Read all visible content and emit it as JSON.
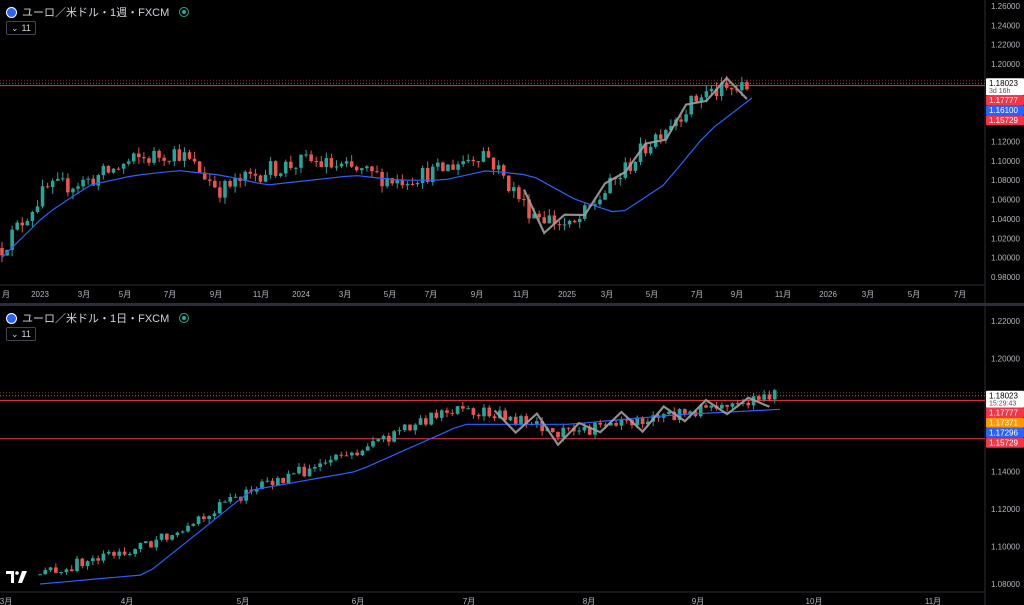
{
  "top": {
    "title": "ユーロ／米ドル・1週・FXCM",
    "ma_label": "11",
    "countdown": "3d 16h",
    "price_labels": [
      "1.18023",
      "1.17777",
      "1.16100",
      "1.15729"
    ],
    "y_ticks": [
      "1.26000",
      "1.24000",
      "1.22000",
      "1.20000",
      "1.18000",
      "1.16000",
      "1.14000",
      "1.12000",
      "1.10000",
      "1.08000",
      "1.06000",
      "1.04000",
      "1.02000",
      "1.00000",
      "0.98000"
    ],
    "x_ticks": [
      "月",
      "2023",
      "3月",
      "5月",
      "7月",
      "9月",
      "11月",
      "2024",
      "3月",
      "5月",
      "7月",
      "9月",
      "11月",
      "2025",
      "3月",
      "5月",
      "7月",
      "9月",
      "11月",
      "2026",
      "3月",
      "5月",
      "7月"
    ]
  },
  "bottom": {
    "title": "ユーロ／米ドル・1日・FXCM",
    "ma_label": "11",
    "countdown": "15:29:43",
    "price_labels": [
      "1.18023",
      "1.17777",
      "1.17371",
      "1.17296",
      "1.15729"
    ],
    "y_ticks": [
      "1.22000",
      "1.20000",
      "1.18000",
      "1.16000",
      "1.14000",
      "1.12000",
      "1.10000",
      "1.08000"
    ],
    "x_ticks": [
      "3月",
      "4月",
      "5月",
      "6月",
      "7月",
      "8月",
      "9月",
      "10月",
      "11月"
    ]
  },
  "colors": {
    "up": "#26a69a",
    "down": "#ef5350",
    "ma": "#2962ff",
    "zigzag": "#9e9e9e",
    "hline": "#f23645",
    "orange": "#ff9800",
    "white": "#ffffff"
  },
  "chart_data": [
    {
      "type": "line",
      "title": "ユーロ／米ドル・1週・FXCM",
      "ylim": [
        0.97,
        1.265
      ],
      "series": [
        {
          "name": "",
          "x": [
            "2022-11",
            "2023-01",
            "2023-03",
            "2023-05",
            "2023-07",
            "2023-09",
            "2023-11",
            "2024-01",
            "2024-03",
            "2024-05",
            "2024-07",
            "2024-09",
            "2024-11",
            "2025-01",
            "2025-03",
            "2025-05",
            "2025-07",
            "2025-09"
          ],
          "values": [
            1.01,
            1.07,
            1.08,
            1.1,
            1.11,
            1.07,
            1.09,
            1.1,
            1.09,
            1.08,
            1.09,
            1.11,
            1.05,
            1.03,
            1.08,
            1.13,
            1.17,
            1.175
          ]
        },
        {
          "name": "",
          "x": [
            "2022-11",
            "2023-01",
            "2023-03",
            "2023-05",
            "2023-07",
            "2023-09",
            "2023-11",
            "2024-01",
            "2024-03",
            "2024-05",
            "2024-07",
            "2024-09",
            "2024-11",
            "2025-01",
            "2025-03",
            "2025-05",
            "2025-07",
            "2025-09"
          ],
          "values": [
            1.0,
            1.045,
            1.075,
            1.085,
            1.09,
            1.085,
            1.075,
            1.08,
            1.085,
            1.08,
            1.08,
            1.09,
            1.085,
            1.06,
            1.045,
            1.075,
            1.13,
            1.165
          ]
        }
      ],
      "horizontal_lines": [
        1.18023,
        1.17777,
        1.15729
      ]
    },
    {
      "type": "line",
      "title": "ユーロ／米ドル・1日・FXCM",
      "ylim": [
        1.075,
        1.225
      ],
      "series": [
        {
          "name": "",
          "x": [
            "2025-03",
            "2025-04",
            "2025-05",
            "2025-06",
            "2025-07",
            "2025-08",
            "2025-09",
            "2025-09-20"
          ],
          "values": [
            1.085,
            1.1,
            1.13,
            1.15,
            1.175,
            1.16,
            1.17,
            1.18
          ]
        },
        {
          "name": "",
          "x": [
            "2025-03",
            "2025-04",
            "2025-05",
            "2025-06",
            "2025-07",
            "2025-08",
            "2025-09",
            "2025-09-20"
          ],
          "values": [
            1.08,
            1.085,
            1.13,
            1.14,
            1.165,
            1.165,
            1.17,
            1.173
          ]
        }
      ],
      "horizontal_lines": [
        1.18023,
        1.17777,
        1.15729
      ]
    }
  ]
}
